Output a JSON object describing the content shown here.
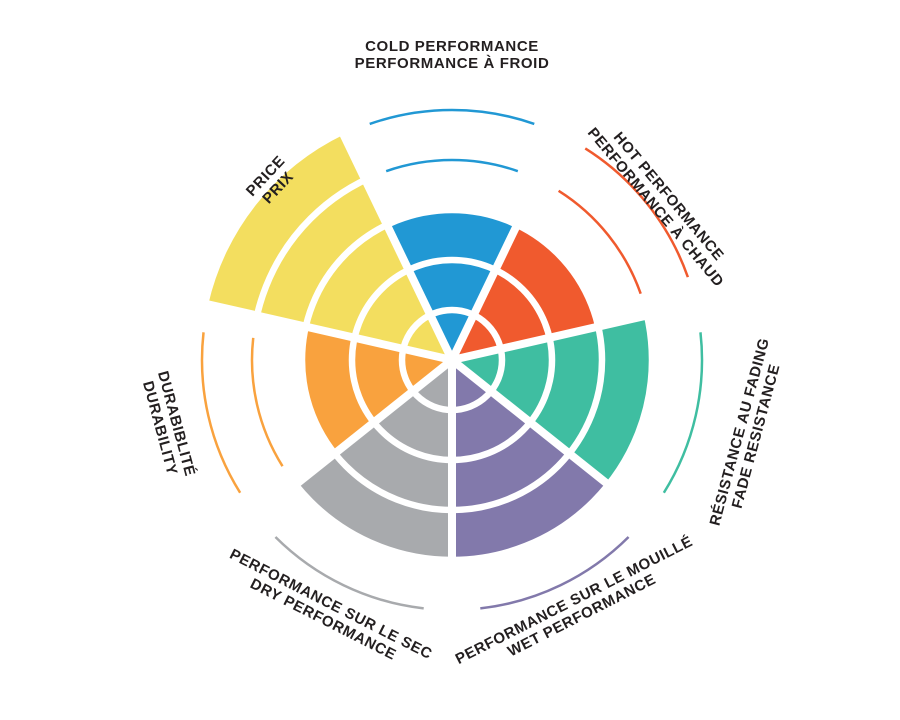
{
  "chart_data": {
    "type": "radial-sector-chart",
    "title": "",
    "scale_max": 5,
    "rings": 5,
    "legend_position": "around",
    "grid": "concentric-rings-with-radial-dividers",
    "categories": [
      "COLD PERFORMANCE",
      "HOT PERFORMANCE",
      "FADE RESISTANCE",
      "WET PERFORMANCE",
      "DRY PERFORMANCE",
      "DURABILITY",
      "PRICE"
    ],
    "values": [
      3,
      3,
      4,
      4,
      4,
      3,
      5
    ],
    "sectors": [
      {
        "id": "cold-performance",
        "label_line1": "COLD PERFORMANCE",
        "label_line2": "PERFORMANCE À FROID",
        "value": 3,
        "color": "#2198D4"
      },
      {
        "id": "hot-performance",
        "label_line1": "HOT PERFORMANCE",
        "label_line2": "PERFORMANCE À CHAUD",
        "value": 3,
        "color": "#F05A2E"
      },
      {
        "id": "fade-resistance",
        "label_line1": "RÉSISTANCE AU FADING",
        "label_line2": "FADE RESISTANCE",
        "value": 4,
        "color": "#3FBEA1"
      },
      {
        "id": "wet-performance",
        "label_line1": "PERFORMANCE SUR LE MOUILLÉ",
        "label_line2": "WET PERFORMANCE",
        "value": 4,
        "color": "#8279AB"
      },
      {
        "id": "dry-performance",
        "label_line1": "PERFORMANCE SUR LE SEC",
        "label_line2": "DRY PERFORMANCE",
        "value": 4,
        "color": "#A8AAAD"
      },
      {
        "id": "durability",
        "label_line1": "DURABIBLITÉ",
        "label_line2": "DURABILITY",
        "value": 3,
        "color": "#F9A23E"
      },
      {
        "id": "price",
        "label_line1": "PRICE",
        "label_line2": "PRIX",
        "value": 5,
        "color": "#F3DE5F"
      }
    ],
    "text_color": "#231F20",
    "background": "#FFFFFF"
  }
}
